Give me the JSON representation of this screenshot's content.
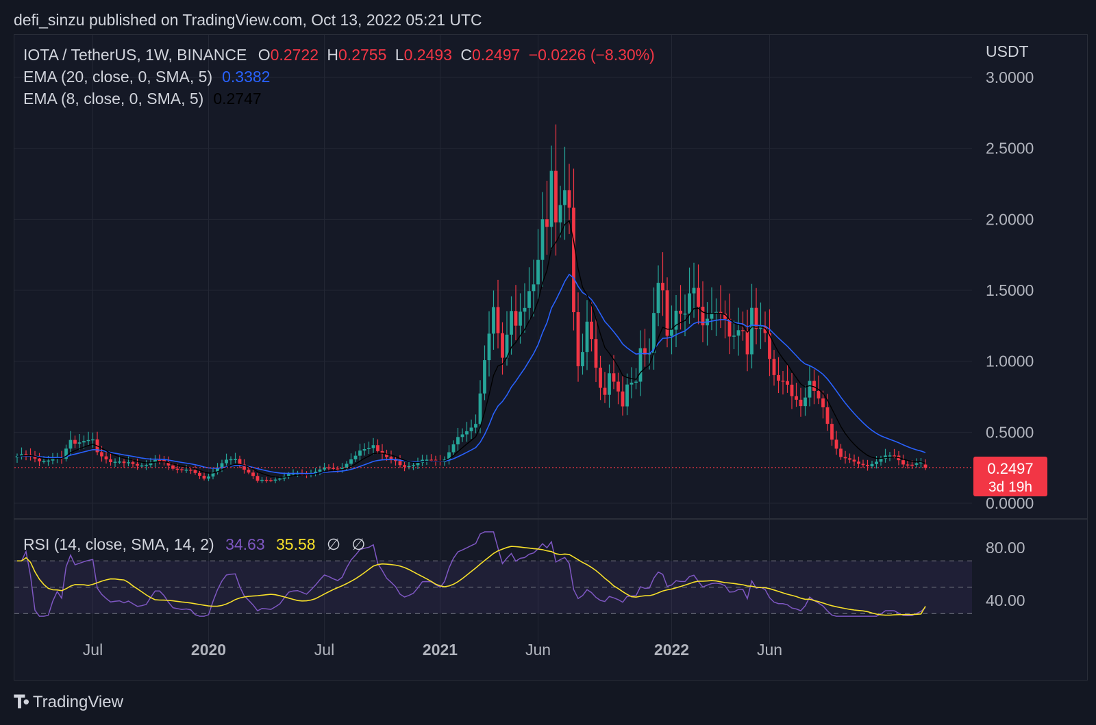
{
  "header": {
    "published": "defi_sinzu published on TradingView.com, Oct 13, 2022 05:21 UTC"
  },
  "legend": {
    "symbol": "IOTA / TetherUS, 1W, BINANCE",
    "open_label": "O",
    "open": "0.2722",
    "high_label": "H",
    "high": "0.2755",
    "low_label": "L",
    "low": "0.2493",
    "close_label": "C",
    "close": "0.2497",
    "change": "−0.0226 (−8.30%)",
    "ema20_label": "EMA (20, close, 0, SMA, 5)",
    "ema20_value": "0.3382",
    "ema8_label": "EMA (8, close, 0, SMA, 5)",
    "ema8_value": "0.2747",
    "rsi_label": "RSI (14, close, SMA, 14, 2)",
    "rsi_value": "34.63",
    "rsi_sma_value": "35.58",
    "rsi_extra1": "∅",
    "rsi_extra2": "∅"
  },
  "price_tag": {
    "value": "0.2497",
    "countdown": "3d 19h"
  },
  "footer": {
    "brand": "TradingView"
  },
  "colors": {
    "up": "#26a69a",
    "down": "#f23645",
    "ema20": "#2962ff",
    "ema8": "#000000",
    "rsi": "#7e57c2",
    "rsi_sma": "#f7e02a",
    "bg": "#151926"
  },
  "chart_data": {
    "type": "candlestick",
    "currency": "USDT",
    "price_axis_ticks": [
      "3.0000",
      "2.5000",
      "2.0000",
      "1.5000",
      "1.0000",
      "0.5000",
      "0.0000"
    ],
    "price_ylim": [
      0,
      3.0
    ],
    "rsi_axis_ticks": [
      "80.00",
      "40.00"
    ],
    "rsi_levels": [
      70,
      50,
      30
    ],
    "x_tick_labels": [
      {
        "label": "Jul",
        "bold": false
      },
      {
        "label": "2020",
        "bold": true
      },
      {
        "label": "Jul",
        "bold": false
      },
      {
        "label": "2021",
        "bold": true
      },
      {
        "label": "Jun",
        "bold": false
      },
      {
        "label": "2022",
        "bold": true
      },
      {
        "label": "Jun",
        "bold": false
      }
    ],
    "x_tick_weeks": [
      17,
      43,
      69,
      95,
      117,
      147,
      169
    ],
    "anchors": [
      [
        0,
        0.33
      ],
      [
        10,
        0.3
      ],
      [
        12,
        0.46
      ],
      [
        17,
        0.42
      ],
      [
        18,
        0.35
      ],
      [
        24,
        0.27
      ],
      [
        32,
        0.29
      ],
      [
        38,
        0.23
      ],
      [
        42,
        0.18
      ],
      [
        46,
        0.27
      ],
      [
        49,
        0.32
      ],
      [
        54,
        0.15
      ],
      [
        62,
        0.2
      ],
      [
        72,
        0.25
      ],
      [
        76,
        0.32
      ],
      [
        80,
        0.43
      ],
      [
        83,
        0.31
      ],
      [
        86,
        0.27
      ],
      [
        90,
        0.28
      ],
      [
        96,
        0.32
      ],
      [
        98,
        0.4
      ],
      [
        100,
        0.47
      ],
      [
        103,
        0.6
      ],
      [
        105,
        0.98
      ],
      [
        107,
        1.3
      ],
      [
        109,
        1.07
      ],
      [
        111,
        1.43
      ],
      [
        112,
        1.25
      ],
      [
        114,
        1.31
      ],
      [
        116,
        1.56
      ],
      [
        118,
        2.1
      ],
      [
        119,
        2.0
      ],
      [
        120,
        2.29
      ],
      [
        121,
        1.85
      ],
      [
        123,
        2.18
      ],
      [
        124,
        2.15
      ],
      [
        125,
        1.45
      ],
      [
        126,
        1.0
      ],
      [
        127,
        1.06
      ],
      [
        128,
        1.23
      ],
      [
        130,
        0.93
      ],
      [
        131,
        0.83
      ],
      [
        132,
        0.8
      ],
      [
        133,
        0.98
      ],
      [
        136,
        0.65
      ],
      [
        137,
        0.79
      ],
      [
        139,
        0.9
      ],
      [
        140,
        1.15
      ],
      [
        142,
        1.05
      ],
      [
        144,
        1.48
      ],
      [
        145,
        1.45
      ],
      [
        146,
        1.2
      ],
      [
        148,
        1.42
      ],
      [
        150,
        1.3
      ],
      [
        152,
        1.46
      ],
      [
        154,
        1.3
      ],
      [
        155,
        1.4
      ],
      [
        156,
        1.38
      ],
      [
        158,
        1.28
      ],
      [
        160,
        1.15
      ],
      [
        162,
        1.28
      ],
      [
        163,
        1.3
      ],
      [
        164,
        1.06
      ],
      [
        165,
        1.32
      ],
      [
        166,
        1.17
      ],
      [
        168,
        1.2
      ],
      [
        170,
        0.95
      ],
      [
        172,
        0.85
      ],
      [
        174,
        0.72
      ],
      [
        176,
        0.7
      ],
      [
        178,
        0.9
      ],
      [
        179,
        0.8
      ],
      [
        181,
        0.63
      ],
      [
        183,
        0.45
      ],
      [
        185,
        0.35
      ],
      [
        187,
        0.3
      ],
      [
        189,
        0.26
      ],
      [
        191,
        0.27
      ],
      [
        193,
        0.31
      ],
      [
        195,
        0.32
      ],
      [
        197,
        0.32
      ],
      [
        199,
        0.29
      ],
      [
        201,
        0.28
      ],
      [
        203,
        0.2722
      ],
      [
        204,
        0.2497
      ]
    ],
    "ema20_last": 0.3382,
    "ema8_last": 0.2747,
    "last_price": 0.2497,
    "rsi_last": 34.63,
    "rsi_sma_last": 35.58
  }
}
